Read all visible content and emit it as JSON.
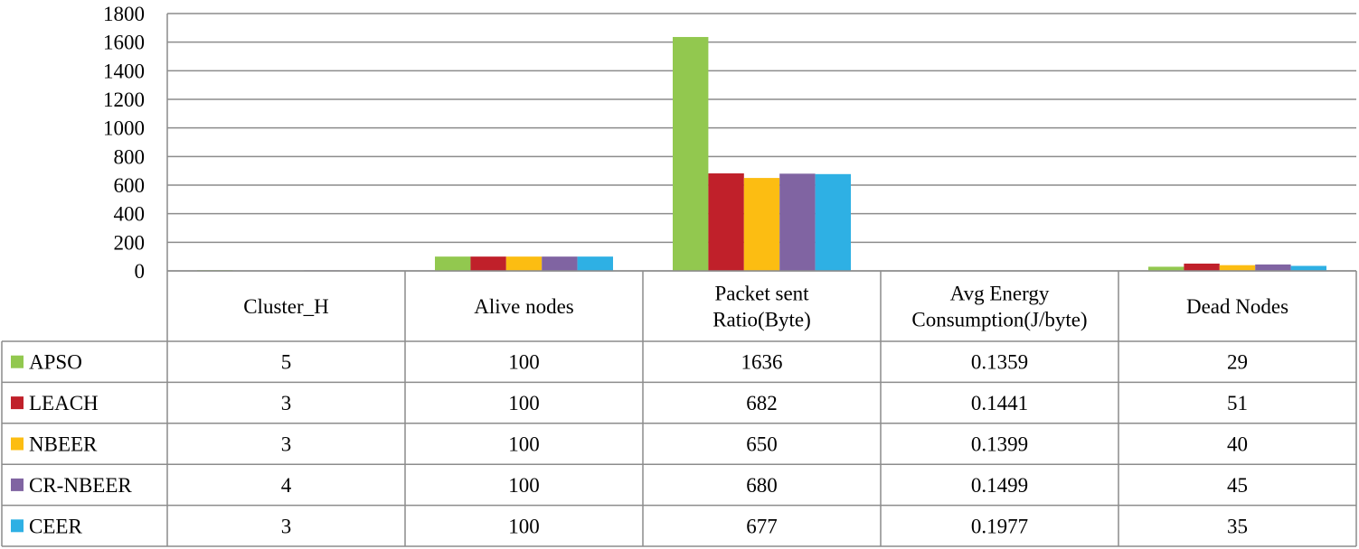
{
  "chart_data": {
    "type": "bar",
    "title": "",
    "xlabel": "",
    "ylabel": "",
    "ylim": [
      0,
      1800
    ],
    "yticks": [
      0,
      200,
      400,
      600,
      800,
      1000,
      1200,
      1400,
      1600,
      1800
    ],
    "grid": true,
    "legend": "data-table-left",
    "categories": [
      [
        "Cluster_H"
      ],
      [
        "Alive nodes"
      ],
      [
        "Packet sent",
        "Ratio(Byte)"
      ],
      [
        "Avg Energy",
        "Consumption(J/byte)"
      ],
      [
        "Dead Nodes"
      ]
    ],
    "series": [
      {
        "name": "APSO",
        "color": "#92c84f",
        "values": [
          5,
          100,
          1636,
          0.1359,
          29
        ],
        "labels": [
          "5",
          "100",
          "1636",
          "0.1359",
          "29"
        ]
      },
      {
        "name": "LEACH",
        "color": "#c0202a",
        "values": [
          3,
          100,
          682,
          0.1441,
          51
        ],
        "labels": [
          "3",
          "100",
          "682",
          "0.1441",
          "51"
        ]
      },
      {
        "name": "NBEER",
        "color": "#fcbd12",
        "values": [
          3,
          100,
          650,
          0.1399,
          40
        ],
        "labels": [
          "3",
          "100",
          "650",
          "0.1399",
          "40"
        ]
      },
      {
        "name": "CR-NBEER",
        "color": "#8064a2",
        "values": [
          4,
          100,
          680,
          0.1499,
          45
        ],
        "labels": [
          "4",
          "100",
          "680",
          "0.1499",
          "45"
        ]
      },
      {
        "name": "CEER",
        "color": "#2eb0e4",
        "values": [
          3,
          100,
          677,
          0.1977,
          35
        ],
        "labels": [
          "3",
          "100",
          "677",
          "0.1977",
          "35"
        ]
      }
    ]
  }
}
